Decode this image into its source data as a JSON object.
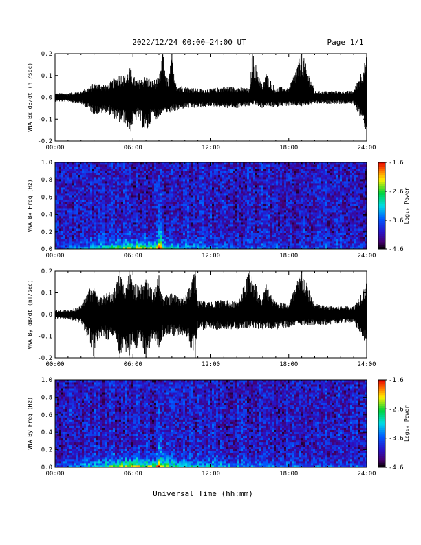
{
  "header": {
    "title": "2022/12/24  00:00–24:00 UT",
    "page": "Page 1/1"
  },
  "xlabel": "Universal Time (hh:mm)",
  "colors": {
    "ink": "#000000",
    "spectrogram_palette": "rainbow (black-purple-blue-cyan-green-yellow-red)"
  },
  "chart_data": [
    {
      "type": "line",
      "title": "",
      "ylabel": "VNA Bx dB/dt (nT/sec)",
      "xlim": [
        0,
        24
      ],
      "ylim": [
        -0.2,
        0.2
      ],
      "xticks": [
        "00:00",
        "06:00",
        "12:00",
        "18:00",
        "24:00"
      ],
      "yticks": [
        "0.2",
        "0.1",
        "0.0",
        "-0.1",
        "-0.2"
      ],
      "series": [
        {
          "x": [
            0,
            1,
            2,
            2.7,
            3,
            4,
            4.6,
            5,
            5.4,
            5.8,
            6,
            6.4,
            7,
            7.5,
            8,
            8.3,
            8.7,
            9,
            9.2,
            10,
            11,
            12,
            13,
            14,
            15,
            15.2,
            16,
            16.2,
            17,
            17.3,
            18,
            19,
            20,
            21,
            22,
            23,
            24
          ],
          "envelope_max": [
            0.02,
            0.02,
            0.03,
            0.05,
            0.07,
            0.06,
            0.09,
            0.11,
            0.1,
            0.14,
            0.1,
            0.08,
            0.1,
            0.08,
            0.09,
            0.21,
            0.07,
            0.21,
            0.07,
            0.05,
            0.04,
            0.04,
            0.05,
            0.05,
            0.04,
            0.21,
            0.05,
            0.12,
            0.04,
            0.05,
            0.04,
            0.21,
            0.03,
            0.03,
            0.03,
            0.03,
            0.19
          ],
          "envelope_min": [
            -0.02,
            -0.02,
            -0.03,
            -0.06,
            -0.08,
            -0.07,
            -0.1,
            -0.12,
            -0.12,
            -0.17,
            -0.12,
            -0.1,
            -0.17,
            -0.1,
            -0.1,
            -0.06,
            -0.08,
            -0.06,
            -0.07,
            -0.05,
            -0.05,
            -0.04,
            -0.05,
            -0.05,
            -0.04,
            -0.03,
            -0.05,
            -0.04,
            -0.05,
            -0.04,
            -0.04,
            -0.04,
            -0.03,
            -0.03,
            -0.03,
            -0.03,
            -0.16
          ]
        }
      ]
    },
    {
      "type": "heatmap",
      "title": "",
      "ylabel": "VNA Bx Freq (Hz)",
      "xlim": [
        0,
        24
      ],
      "ylim": [
        0,
        1.0
      ],
      "xticks": [
        "00:00",
        "06:00",
        "12:00",
        "18:00",
        "24:00"
      ],
      "yticks": [
        "1.0",
        "0.8",
        "0.6",
        "0.4",
        "0.2",
        "0.0"
      ],
      "colorbar": {
        "label": "Log₁₀ Power",
        "range": [
          -4.6,
          -1.6
        ],
        "ticks": [
          "-1.6",
          "-2.6",
          "-3.6",
          "-4.6"
        ]
      },
      "low_freq_activity": {
        "x": [
          0,
          2,
          3,
          4,
          5,
          6,
          7,
          8,
          9,
          10,
          12,
          14,
          16,
          18,
          20,
          22,
          24
        ],
        "power_near_0Hz": [
          -3.8,
          -3.4,
          -3.0,
          -2.8,
          -2.3,
          -2.0,
          -2.2,
          -1.8,
          -2.8,
          -3.2,
          -3.4,
          -3.5,
          -3.5,
          -3.6,
          -3.7,
          -3.7,
          -3.7
        ]
      }
    },
    {
      "type": "line",
      "title": "",
      "ylabel": "VNA By dB/dt (nT/sec)",
      "xlim": [
        0,
        24
      ],
      "ylim": [
        -0.2,
        0.2
      ],
      "xticks": [
        "00:00",
        "06:00",
        "12:00",
        "18:00",
        "24:00"
      ],
      "yticks": [
        "0.2",
        "0.1",
        "0.0",
        "-0.1",
        "-0.2"
      ],
      "series": [
        {
          "x": [
            0,
            1,
            2,
            2.7,
            3,
            3.5,
            4,
            4.5,
            5,
            5.3,
            5.7,
            6,
            6.5,
            7,
            7.5,
            8,
            8.3,
            9,
            10,
            10.8,
            11,
            12,
            13,
            14,
            15,
            16,
            16.2,
            17,
            18,
            19,
            20,
            21,
            22,
            23,
            24
          ],
          "envelope_max": [
            0.02,
            0.02,
            0.04,
            0.13,
            0.12,
            0.08,
            0.1,
            0.11,
            0.2,
            0.14,
            0.21,
            0.15,
            0.13,
            0.16,
            0.12,
            0.18,
            0.08,
            0.1,
            0.08,
            0.21,
            0.07,
            0.06,
            0.07,
            0.06,
            0.21,
            0.07,
            0.16,
            0.06,
            0.05,
            0.21,
            0.05,
            0.04,
            0.04,
            0.04,
            0.15
          ],
          "envelope_min": [
            -0.02,
            -0.02,
            -0.04,
            -0.14,
            -0.2,
            -0.1,
            -0.12,
            -0.1,
            -0.2,
            -0.16,
            -0.2,
            -0.17,
            -0.15,
            -0.2,
            -0.12,
            -0.15,
            -0.11,
            -0.1,
            -0.1,
            -0.2,
            -0.07,
            -0.07,
            -0.07,
            -0.07,
            -0.06,
            -0.07,
            -0.06,
            -0.07,
            -0.06,
            -0.05,
            -0.05,
            -0.05,
            -0.04,
            -0.04,
            -0.14
          ]
        }
      ]
    },
    {
      "type": "heatmap",
      "title": "",
      "ylabel": "VNA By Freq (Hz)",
      "xlim": [
        0,
        24
      ],
      "ylim": [
        0,
        1.0
      ],
      "xticks": [
        "00:00",
        "06:00",
        "12:00",
        "18:00",
        "24:00"
      ],
      "yticks": [
        "1.0",
        "0.8",
        "0.6",
        "0.4",
        "0.2",
        "0.0"
      ],
      "colorbar": {
        "label": "Log₁₀ Power",
        "range": [
          -4.6,
          -1.6
        ],
        "ticks": [
          "-1.6",
          "-2.6",
          "-3.6",
          "-4.6"
        ]
      },
      "low_freq_activity": {
        "x": [
          0,
          2,
          3,
          4,
          5,
          6,
          7,
          8,
          9,
          10,
          12,
          14,
          16,
          18,
          20,
          22,
          24
        ],
        "power_near_0Hz": [
          -3.6,
          -3.2,
          -2.9,
          -2.6,
          -2.2,
          -2.0,
          -2.3,
          -1.8,
          -2.6,
          -3.0,
          -3.1,
          -3.3,
          -3.3,
          -3.5,
          -3.6,
          -3.7,
          -3.7
        ]
      }
    }
  ]
}
